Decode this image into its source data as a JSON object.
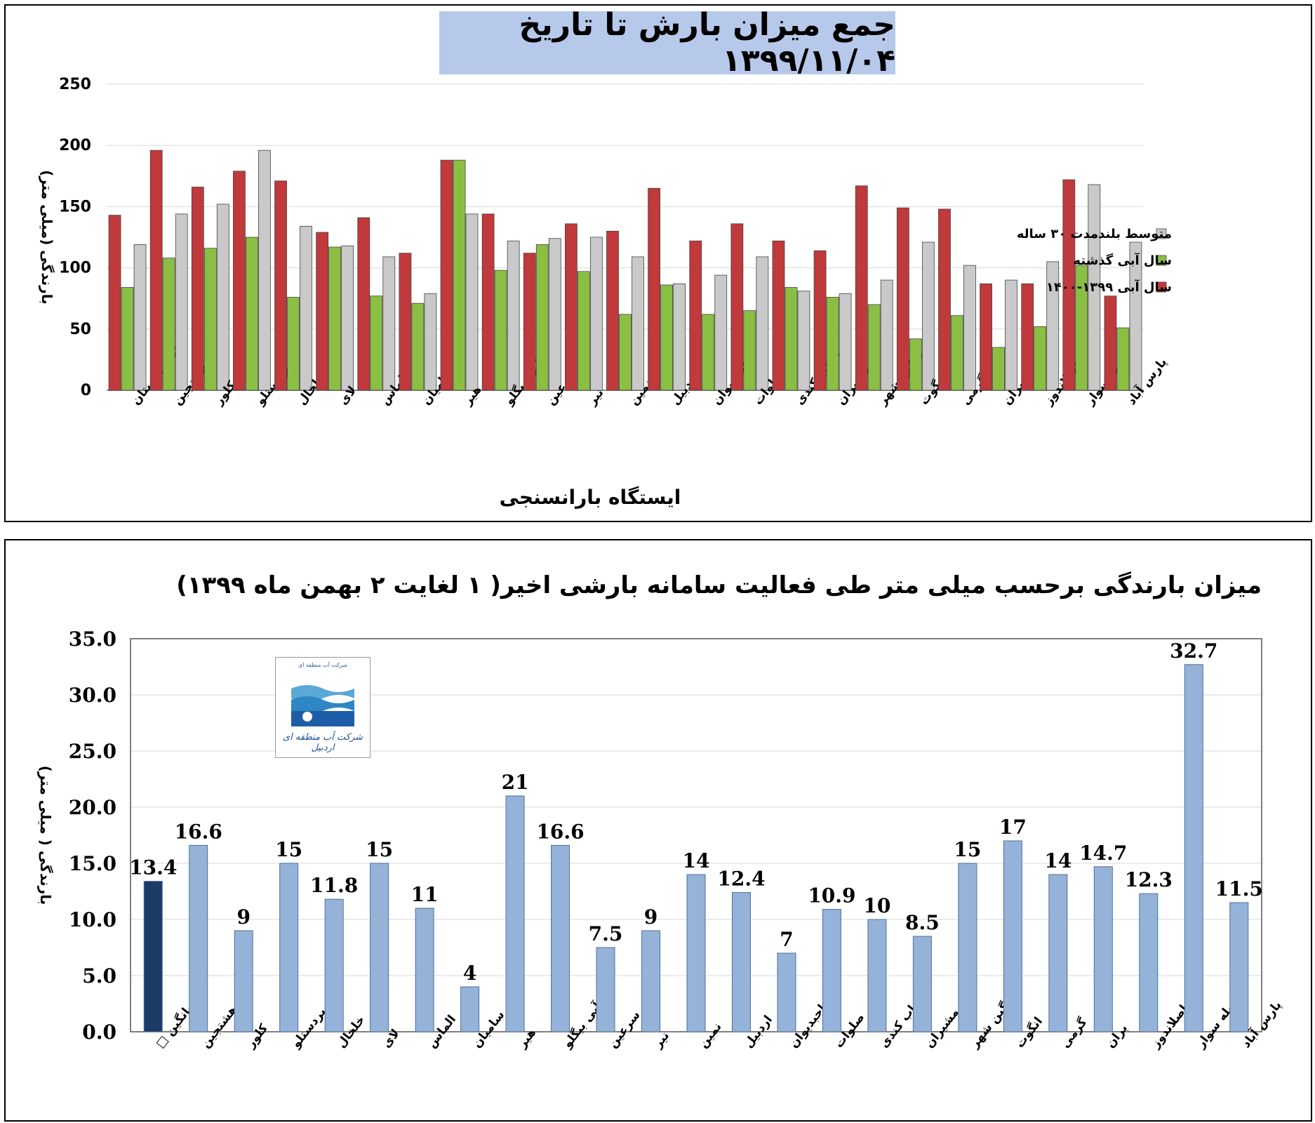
{
  "chart_data": [
    {
      "type": "bar",
      "title": "جمع میزان بارش تا تاریخ ۱۳۹۹/۱۱/۰۴",
      "xlabel": "ایستگاه بارانسنجی",
      "ylabel": "بارندگی (میلی متر)",
      "ylim": [
        0,
        250
      ],
      "yticks": [
        "0",
        "50",
        "100",
        "150",
        "200",
        "250"
      ],
      "grid": true,
      "legend_position": "right",
      "categories": [
        "میانگین استان",
        "هشتجین",
        "کلور",
        "پردستلو",
        "خلخال",
        "لای",
        "الماس",
        "سامیان",
        "هیر",
        "آبی بیگلو",
        "سرعین",
        "نیر",
        "نمین",
        "اردبیل",
        "صاحبدیوان",
        "صلوات",
        "ارباب کندی",
        "مشیران",
        "مشگین شهر",
        "انگوت",
        "گرمی",
        "بران",
        "اصلاندوز",
        "بیله سوار",
        "پارس آباد"
      ],
      "series": [
        {
          "name": "سال آبی ۱۳۹۹-۱۴۰۰",
          "color": "#c0393b",
          "values": [
            143,
            196,
            166,
            179,
            171,
            129,
            141,
            112,
            188,
            144,
            112,
            136,
            130,
            165,
            122,
            136,
            122,
            114,
            167,
            149,
            148,
            87,
            87,
            172,
            77
          ]
        },
        {
          "name": "سال آبی گذشته",
          "color": "#8bbf44",
          "values": [
            84,
            108,
            116,
            125,
            76,
            117,
            77,
            71,
            188,
            98,
            119,
            97,
            62,
            86,
            62,
            65,
            84,
            76,
            70,
            42,
            61,
            35,
            52,
            102,
            51
          ]
        },
        {
          "name": "متوسط بلندمدت ۳۰ ساله",
          "color": "#c9c9c9",
          "values": [
            119,
            144,
            152,
            196,
            134,
            118,
            109,
            79,
            144,
            122,
            124,
            125,
            109,
            87,
            94,
            109,
            81,
            79,
            90,
            121,
            102,
            90,
            105,
            168,
            121
          ]
        }
      ]
    },
    {
      "type": "bar",
      "title": "میزان بارندگی برحسب میلی متر طی فعالیت سامانه بارشی اخیر( ۱ لغایت ۲ بهمن ماه ۱۳۹۹)",
      "ylabel": "بارندگی ( میلی متر)",
      "ylim": [
        0,
        35
      ],
      "yticks": [
        "0.0",
        "5.0",
        "10.0",
        "15.0",
        "20.0",
        "25.0",
        "30.0",
        "35.0"
      ],
      "grid": true,
      "categories": [
        "میانگین □",
        "هشتجین",
        "کلور",
        "پردستلو",
        "خلخال",
        "لای",
        "الماس",
        "سامیان",
        "هیر",
        "آبی بیگلو",
        "سرعین",
        "نیر",
        "نمین",
        "اردبیل",
        "صاحبدیوان",
        "صلوات",
        "ارباب کندی",
        "مشیران",
        "مشگین شهر",
        "انگوت",
        "گرمی",
        "بران",
        "اصلاندوز",
        "بیله سوار",
        "پارس آباد"
      ],
      "values": [
        13.4,
        16.6,
        9,
        15,
        11.8,
        15,
        11,
        4,
        21,
        16.6,
        7.5,
        9,
        14,
        12.4,
        7,
        10.9,
        10,
        8.5,
        15,
        17,
        14,
        14.7,
        12.3,
        32.7,
        11.5
      ],
      "value_labels": [
        "13.4",
        "16.6",
        "9",
        "15",
        "11.8",
        "15",
        "11",
        "4",
        "21",
        "16.6",
        "7.5",
        "9",
        "14",
        "12.4",
        "7",
        "10.9",
        "10",
        "8.5",
        "15",
        "17",
        "14",
        "14.7",
        "12.3",
        "32.7",
        "11.5"
      ],
      "colors": {
        "highlight": "#1c3a66",
        "bar": "#95b3d9",
        "bar_edge": "#4f6f9a"
      }
    }
  ],
  "logo": {
    "text_top": "شرکت آب منطقه ای",
    "text_bottom": "شرکت آب منطقه ای اردبیل"
  }
}
